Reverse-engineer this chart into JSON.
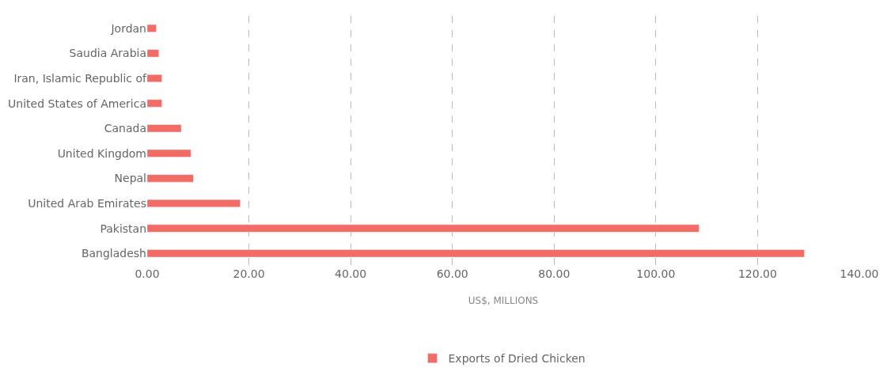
{
  "chart_data": {
    "type": "bar",
    "orientation": "horizontal",
    "categories": [
      "Jordan",
      "Saudia Arabia",
      "Iran, Islamic Republic of",
      "United States of America",
      "Canada",
      "United Kingdom",
      "Nepal",
      "United Arab Emirates",
      "Pakistan",
      "Bangladesh"
    ],
    "series": [
      {
        "name": "Exports of Dried Chicken",
        "color": "#f26b65",
        "values": [
          1.8,
          2.3,
          2.9,
          2.9,
          6.7,
          8.6,
          9.1,
          18.3,
          108.5,
          129.2
        ]
      }
    ],
    "xlabel": "US$, MILLIONS",
    "xlim": [
      0,
      140
    ],
    "xticks": [
      {
        "value": 0,
        "label": "0.00"
      },
      {
        "value": 20,
        "label": "20.00"
      },
      {
        "value": 40,
        "label": "40.00"
      },
      {
        "value": 60,
        "label": "60.00"
      },
      {
        "value": 80,
        "label": "80.00"
      },
      {
        "value": 100,
        "label": "100.00"
      },
      {
        "value": 120,
        "label": "120.00"
      },
      {
        "value": 140,
        "label": "140.00"
      }
    ],
    "grid": "x",
    "legend": "bottom"
  }
}
